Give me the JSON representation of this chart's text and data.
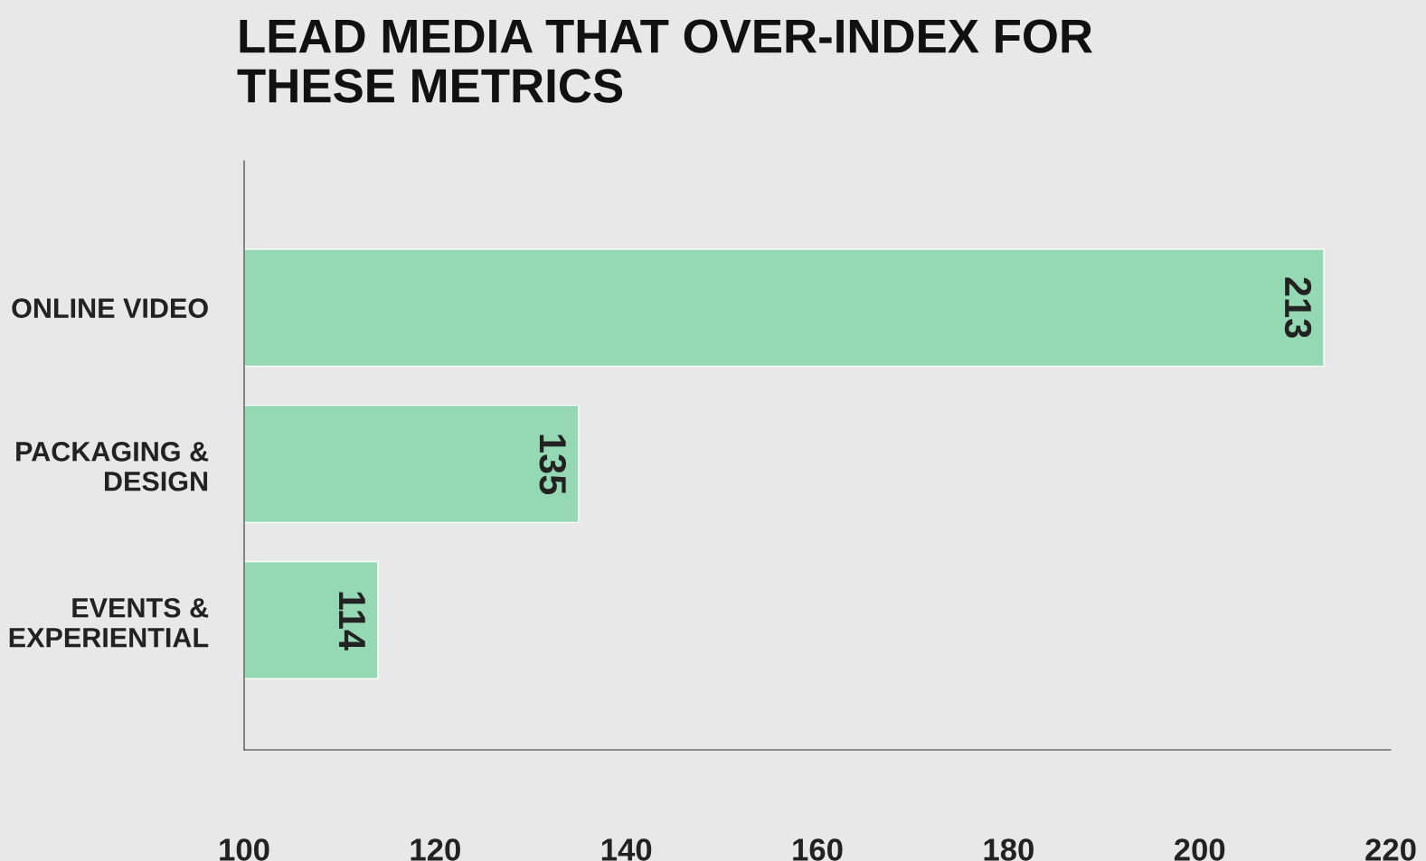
{
  "chart_data": {
    "type": "bar",
    "orientation": "horizontal",
    "title": "LEAD MEDIA THAT OVER-INDEX FOR\nTHESE METRICS",
    "categories": [
      "ONLINE VIDEO",
      "PACKAGING &\nDESIGN",
      "EVENTS &\nEXPERIENTIAL"
    ],
    "values": [
      213,
      135,
      114
    ],
    "color": "#94d9b3",
    "xlim": [
      100,
      220
    ],
    "xticks": [
      100,
      120,
      140,
      160,
      180,
      200,
      220
    ],
    "data_labels": true,
    "grid": false,
    "legend": false
  }
}
